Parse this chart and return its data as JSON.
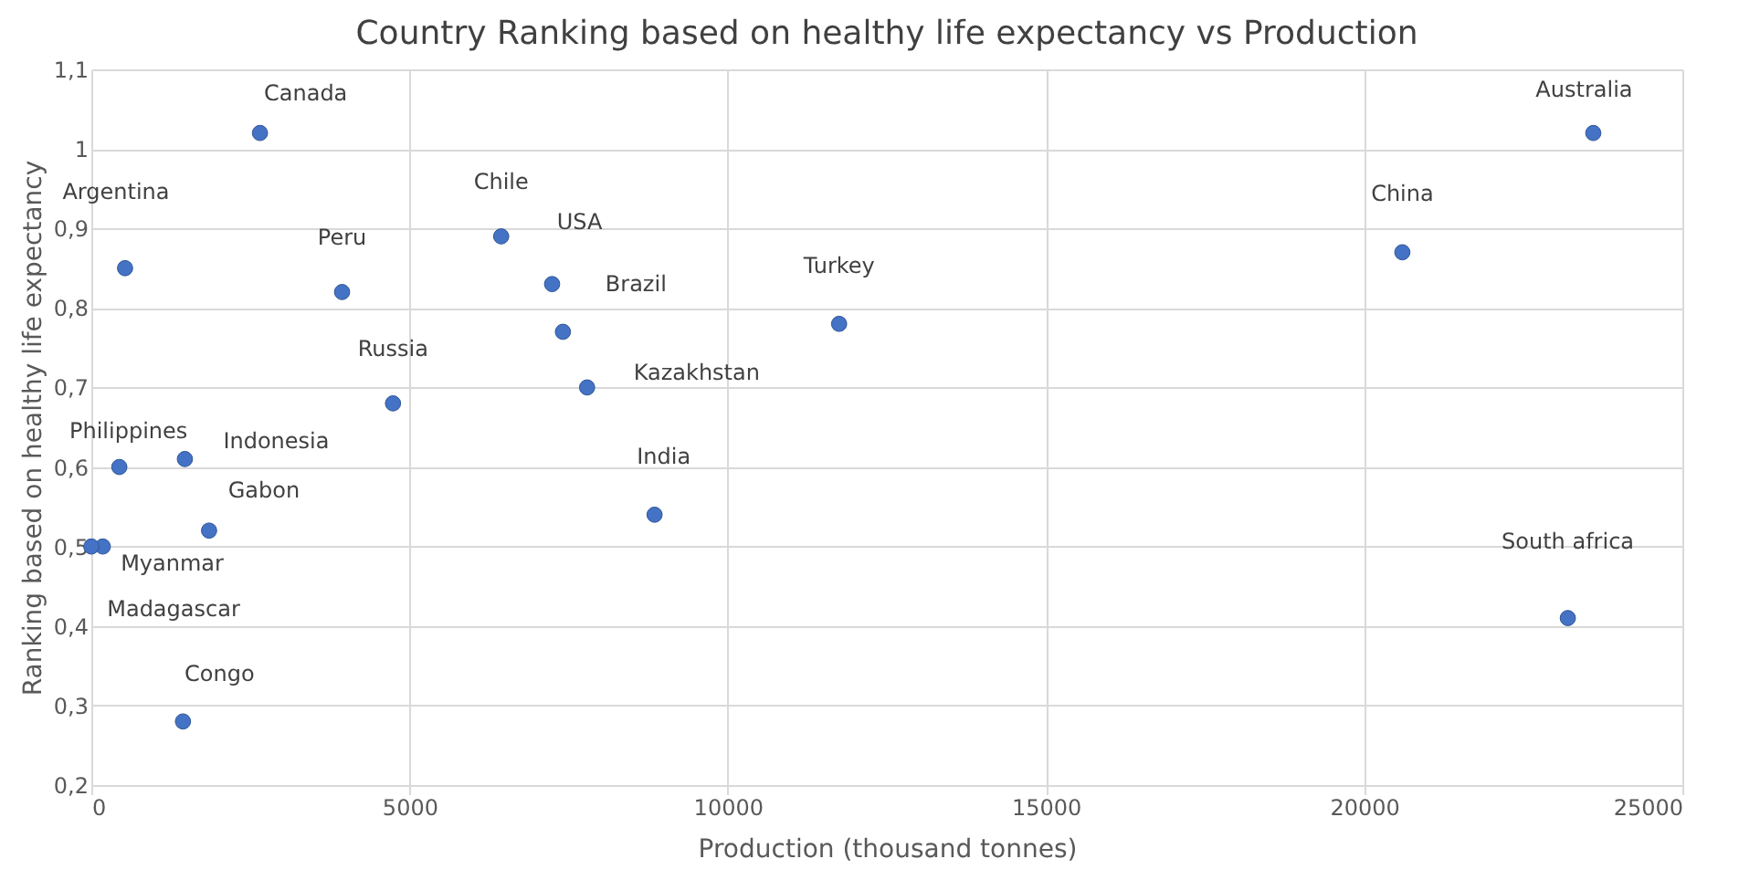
{
  "chart_data": {
    "type": "scatter",
    "title": "Country Ranking based on healthy life expectancy vs Production",
    "xlabel": "Production (thousand tonnes)",
    "ylabel": "Ranking based on healthy life expectancy",
    "x": [
      2650,
      530,
      3940,
      6440,
      7240,
      7410,
      7790,
      4740,
      440,
      1470,
      1850,
      180,
      0,
      1440,
      8850,
      11750,
      20600,
      23600,
      23200
    ],
    "values": [
      1.02,
      0.85,
      0.82,
      0.89,
      0.83,
      0.77,
      0.7,
      0.68,
      0.6,
      0.61,
      0.52,
      0.5,
      0.5,
      0.28,
      0.54,
      0.78,
      0.87,
      1.02,
      0.41
    ],
    "color": "#4472c4",
    "marker": "circle",
    "grid": true,
    "xlim": [
      0,
      25000
    ],
    "xticks": [
      0,
      5000,
      10000,
      15000,
      20000,
      25000
    ],
    "ylim": [
      0.2,
      1.1
    ],
    "yticks": [
      {
        "value": 0.2,
        "label": "0,2"
      },
      {
        "value": 0.3,
        "label": "0,3"
      },
      {
        "value": 0.4,
        "label": "0,4"
      },
      {
        "value": 0.5,
        "label": "0,5"
      },
      {
        "value": 0.6,
        "label": "0,6"
      },
      {
        "value": 0.7,
        "label": "0,7"
      },
      {
        "value": 0.8,
        "label": "0,8"
      },
      {
        "value": 0.9,
        "label": "0,9"
      },
      1,
      {
        "value": 1.1,
        "label": "1,1"
      }
    ],
    "annotations": [
      {
        "text": "Canada",
        "x": 2650,
        "y": 1.02
      },
      {
        "text": "Argentina",
        "x": 530,
        "y": 0.85
      },
      {
        "text": "Peru",
        "x": 3940,
        "y": 0.82
      },
      {
        "text": "Chile",
        "x": 6440,
        "y": 0.89
      },
      {
        "text": "USA",
        "x": 7240,
        "y": 0.83
      },
      {
        "text": "Brazil",
        "x": 7410,
        "y": 0.77
      },
      {
        "text": "Kazakhstan",
        "x": 7790,
        "y": 0.7
      },
      {
        "text": "Russia",
        "x": 4740,
        "y": 0.68
      },
      {
        "text": "Philippines",
        "x": 440,
        "y": 0.6
      },
      {
        "text": "Indonesia",
        "x": 1470,
        "y": 0.61
      },
      {
        "text": "Gabon",
        "x": 1850,
        "y": 0.52
      },
      {
        "text": "Myanmar",
        "x": 180,
        "y": 0.5
      },
      {
        "text": "Madagascar",
        "x": 0,
        "y": 0.5
      },
      {
        "text": "Congo",
        "x": 1440,
        "y": 0.28
      },
      {
        "text": "India",
        "x": 8850,
        "y": 0.54
      },
      {
        "text": "Turkey",
        "x": 11750,
        "y": 0.78
      },
      {
        "text": "China",
        "x": 20600,
        "y": 0.87
      },
      {
        "text": "Australia",
        "x": 23600,
        "y": 1.02
      },
      {
        "text": "South africa",
        "x": 23200,
        "y": 0.41
      }
    ]
  }
}
